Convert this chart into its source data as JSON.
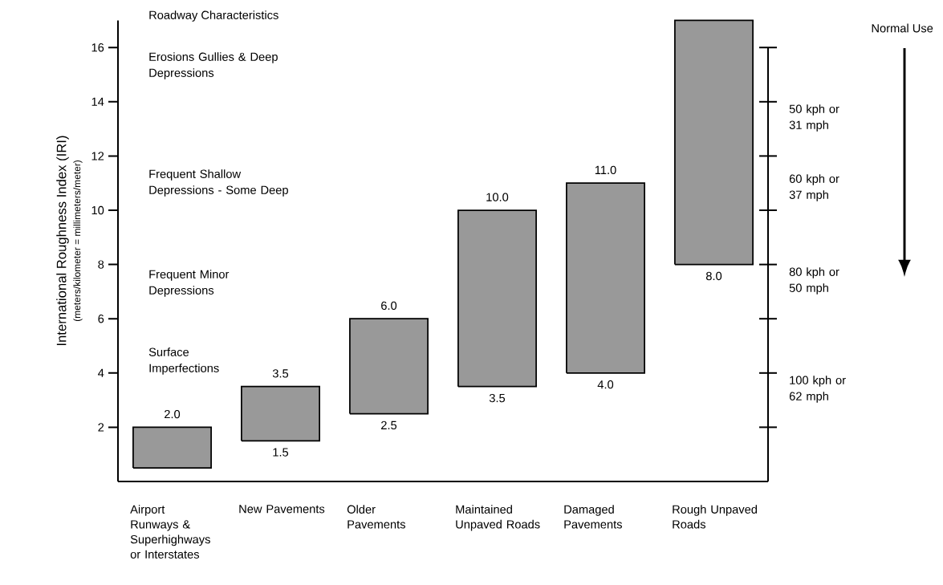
{
  "chart_data": {
    "type": "bar",
    "categories": [
      "Airport Runways & Superhighways or Interstates",
      "New Pavements",
      "Older Pavements",
      "Maintained Unpaved Roads",
      "Damaged Pavements",
      "Rough Unpaved Roads"
    ],
    "base": [
      0.5,
      1.5,
      2.5,
      3.5,
      4.0,
      8.0
    ],
    "values": [
      1.5,
      2.0,
      3.5,
      6.5,
      7.0,
      9.0
    ],
    "value_labels": [
      "2.0",
      "3.5",
      "6.0",
      "10.0",
      "11.0",
      null
    ],
    "color": "#999999",
    "ylabel": "International Roughness Index (IRI)",
    "ylim": [
      0,
      17
    ],
    "yticks": [
      2,
      4,
      6,
      8,
      10,
      12,
      14,
      16
    ],
    "annotations": [
      "(meters/kilometer = millimeters/meter)",
      "Roadway Characteristics",
      "Erosions Gullies & Deep Depressions",
      "Frequent Shallow Depressions - Some Deep",
      "Frequent Minor Depressions",
      "Surface Imperfections",
      "Normal Use",
      "50 kph or 31 mph",
      "60 kph or 37 mph",
      "80 kph or 50 mph",
      "100 kph or 62 mph",
      {
        "text": "1.5",
        "x": "New Pavements",
        "y": 1.5
      },
      {
        "text": "2.5",
        "x": "Older Pavements",
        "y": 2.5
      },
      {
        "text": "3.5",
        "x": "Maintained Unpaved Roads",
        "y": 3.5
      },
      {
        "text": "4.0",
        "x": "Damaged Pavements",
        "y": 4.0
      },
      {
        "text": "8.0",
        "x": "Rough Unpaved Roads",
        "y": 8.0
      }
    ]
  }
}
